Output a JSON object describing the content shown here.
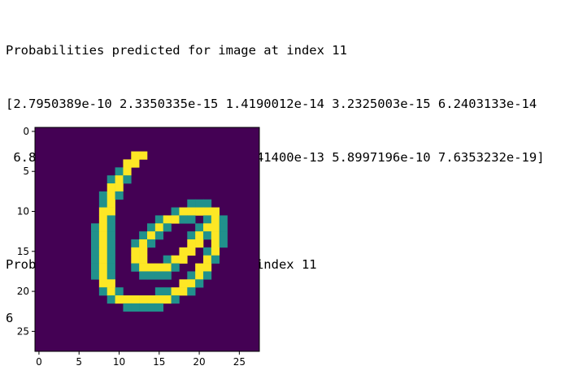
{
  "output": {
    "lines": [
      "Probabilities predicted for image at index 11",
      "[2.7950389e-10 2.3350335e-15 1.4190012e-14 3.2325003e-15 6.2403133e-14",
      " 6.8383538e-10 1.0000000e+00 7.5841400e-13 5.8997196e-10 7.6353232e-19]",
      "",
      "Probabilities class for image at index 11",
      "6"
    ]
  },
  "chart_data": {
    "type": "heatmap",
    "title": "",
    "xlabel": "",
    "ylabel": "",
    "xlim": [
      0,
      27
    ],
    "ylim": [
      27,
      0
    ],
    "x_ticks": [
      "0",
      "5",
      "10",
      "15",
      "20",
      "25"
    ],
    "y_ticks": [
      "0",
      "5",
      "10",
      "15",
      "20",
      "25"
    ],
    "colormap": "viridis",
    "colors": {
      "low": "#440154",
      "mid": "#21918c",
      "high": "#fde725"
    },
    "image_shape": [
      28,
      28
    ],
    "strokes": [
      [
        [
          12.5,
          3
        ],
        [
          11,
          4.5
        ],
        [
          10,
          6
        ],
        [
          9,
          8
        ],
        [
          8.5,
          10
        ],
        [
          8,
          12
        ],
        [
          8,
          14
        ],
        [
          8,
          16
        ],
        [
          8,
          18
        ],
        [
          9,
          20
        ],
        [
          10.5,
          21
        ],
        [
          12.5,
          21.5
        ],
        [
          15,
          21
        ],
        [
          17.5,
          20
        ],
        [
          19.5,
          18.5
        ],
        [
          21,
          16.5
        ],
        [
          22,
          14.5
        ],
        [
          22.5,
          12.5
        ],
        [
          22,
          10.5
        ],
        [
          20.5,
          9.8
        ],
        [
          18.5,
          10
        ],
        [
          16.5,
          11
        ],
        [
          15,
          12
        ],
        [
          13.5,
          13.5
        ],
        [
          12.5,
          15
        ],
        [
          12.5,
          16.5
        ],
        [
          13.5,
          17.5
        ],
        [
          15.5,
          17.2
        ],
        [
          17.5,
          16
        ],
        [
          19.5,
          14
        ],
        [
          21,
          12
        ]
      ]
    ]
  }
}
